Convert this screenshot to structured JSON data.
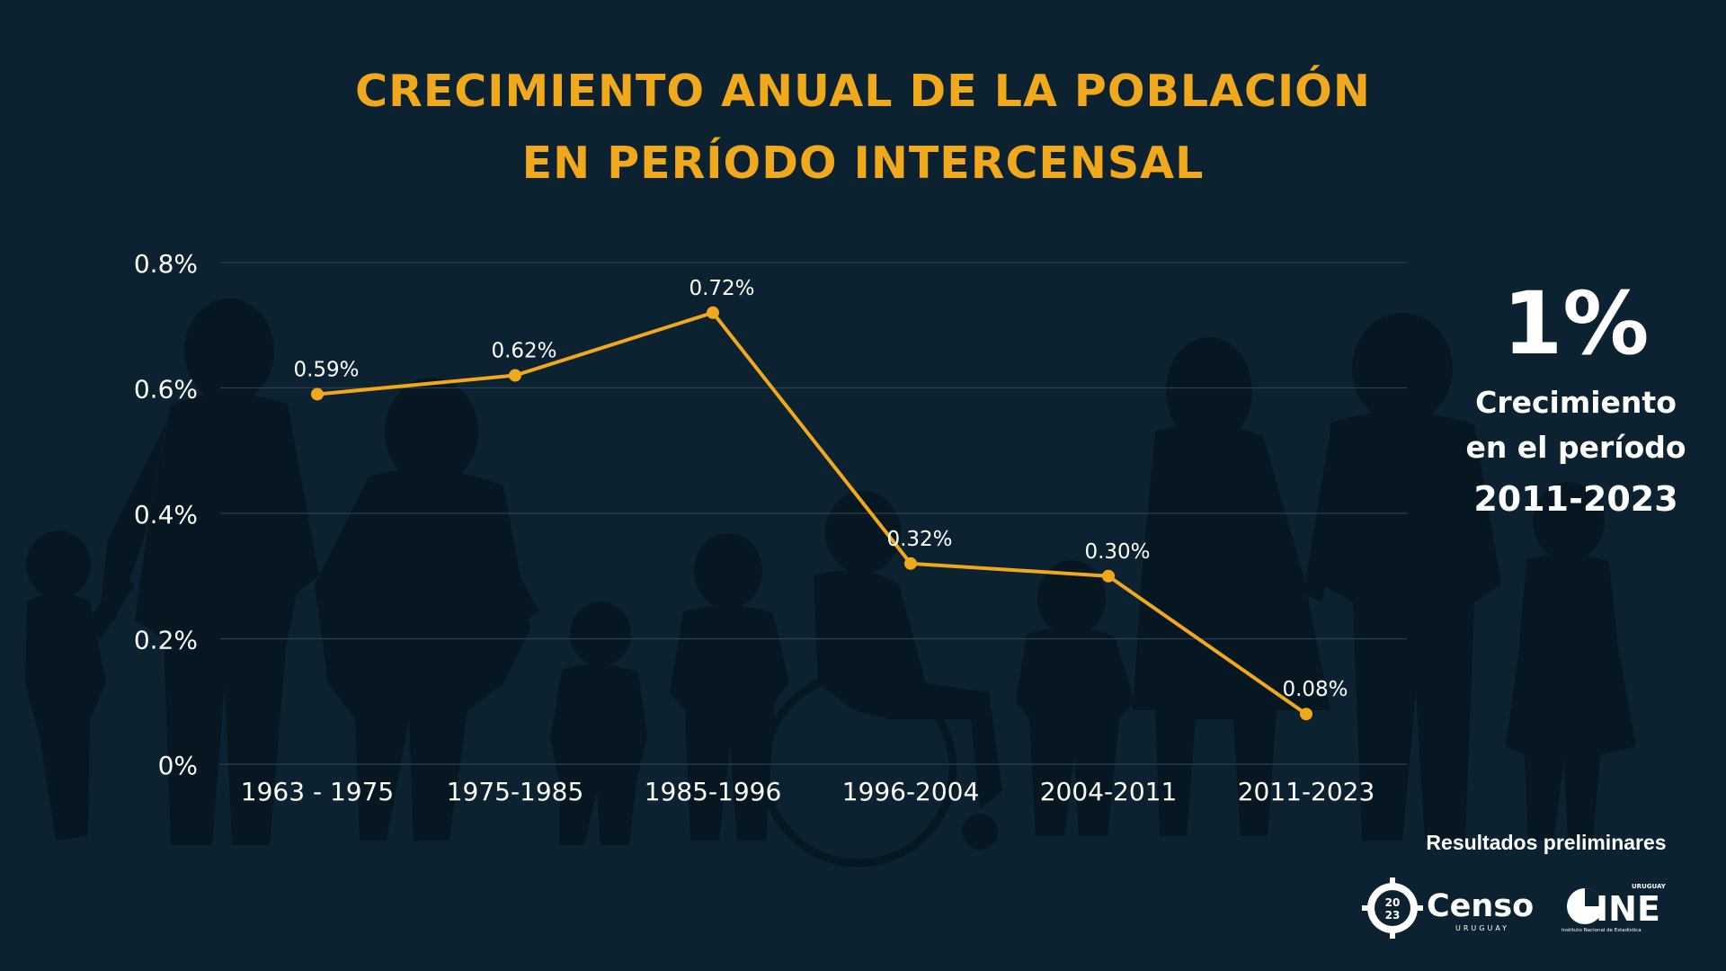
{
  "title": {
    "line1": "CRECIMIENTO ANUAL DE LA POBLACIÓN",
    "line2": "EN PERÍODO INTERCENSAL"
  },
  "callout": {
    "value": "1%",
    "line1": "Crecimiento",
    "line2": "en el período",
    "period": "2011-2023"
  },
  "footer": {
    "note": "Resultados preliminares",
    "censo_logo": {
      "digits_top": "20",
      "digits_bottom": "23",
      "word": "Censo",
      "country": "URUGUAY"
    },
    "ine_logo": {
      "top": "URUGUAY",
      "word": "INE",
      "caption": "Instituto Nacional de Estadística"
    }
  },
  "colors": {
    "background": "#0d2230",
    "accent": "#f0a91c",
    "text": "#ffffff",
    "silhouette": "#061721",
    "grid": "#2a4050"
  },
  "chart_data": {
    "type": "line",
    "title": "CRECIMIENTO ANUAL DE LA POBLACIÓN EN PERÍODO INTERCENSAL",
    "categories": [
      "1963 - 1975",
      "1975-1985",
      "1985-1996",
      "1996-2004",
      "2004-2011",
      "2011-2023"
    ],
    "values": [
      0.59,
      0.62,
      0.72,
      0.32,
      0.3,
      0.08
    ],
    "data_labels": [
      "0.59%",
      "0.62%",
      "0.72%",
      "0.32%",
      "0.30%",
      "0.08%"
    ],
    "y_ticks": [
      0,
      0.2,
      0.4,
      0.6,
      0.8
    ],
    "y_tick_labels": [
      "0%",
      "0.2%",
      "0.4%",
      "0.6%",
      "0.8%"
    ],
    "ylim": [
      0,
      0.8
    ],
    "grid": true,
    "legend": "none",
    "xlabel": "",
    "ylabel": ""
  }
}
